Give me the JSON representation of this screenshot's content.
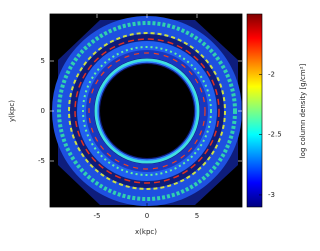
{
  "chart_data": {
    "type": "image",
    "xlabel": "x(kpc)",
    "ylabel": "y(kpc)",
    "colorbar_label": "log column density [g/cm²]",
    "xlim": [
      -9.7,
      9.5
    ],
    "xticks": [
      -5,
      0,
      5
    ],
    "ylim": [
      -9.6,
      9.7
    ],
    "yticks": [
      -5,
      0,
      5
    ],
    "clim": [
      -3.1,
      -1.5
    ],
    "cticks": [
      -3,
      -2.5,
      -2
    ],
    "colormap": "jet"
  }
}
